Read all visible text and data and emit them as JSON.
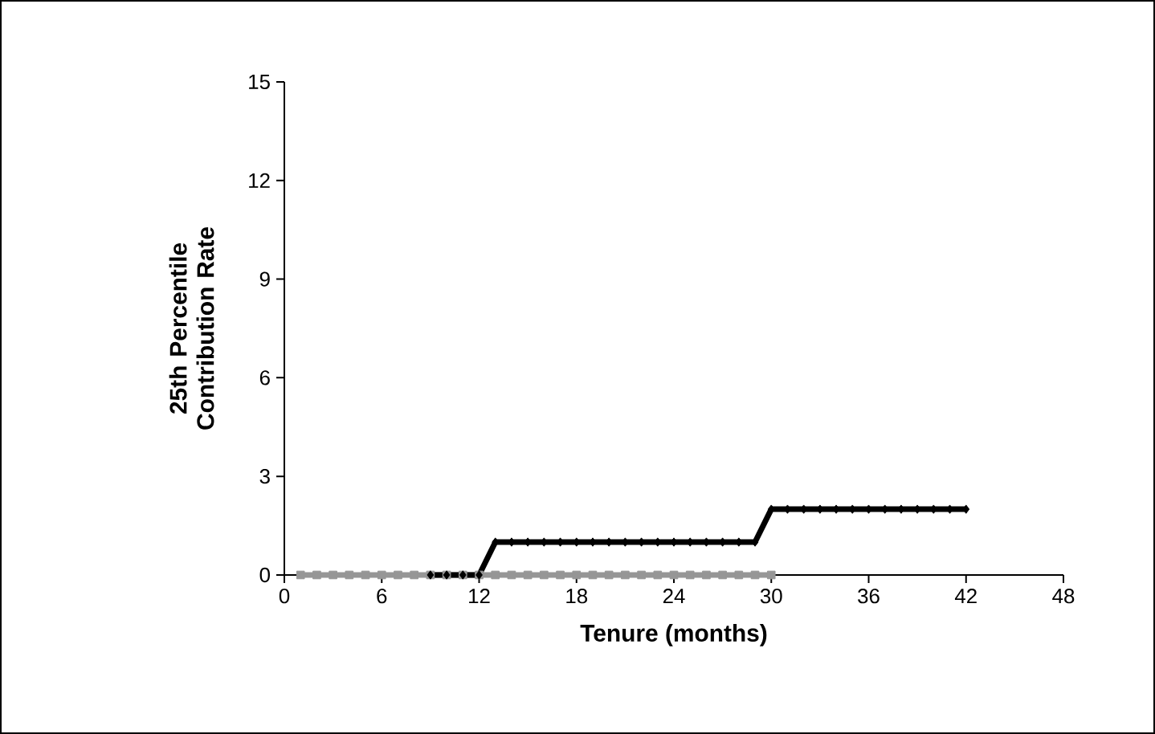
{
  "chart_data": {
    "type": "line",
    "xlabel": "Tenure (months)",
    "ylabel": "25th Percentile Contribution Rate",
    "xlim": [
      0,
      48
    ],
    "xticks": [
      0,
      6,
      12,
      18,
      24,
      30,
      36,
      42,
      48
    ],
    "ylim": [
      0,
      15
    ],
    "yticks": [
      0,
      3,
      6,
      9,
      12,
      15
    ],
    "grid": false,
    "series": [
      {
        "color": "#969696",
        "marker": "square",
        "x": [
          1,
          2,
          3,
          4,
          5,
          6,
          7,
          8,
          9,
          10,
          11,
          12,
          13,
          14,
          15,
          16,
          17,
          18,
          19,
          20,
          21,
          22,
          23,
          24,
          25,
          26,
          27,
          28,
          29,
          30
        ],
        "values": [
          0,
          0,
          0,
          0,
          0,
          0,
          0,
          0,
          0,
          0,
          0,
          0,
          0,
          0,
          0,
          0,
          0,
          0,
          0,
          0,
          0,
          0,
          0,
          0,
          0,
          0,
          0,
          0,
          0,
          0
        ]
      },
      {
        "color": "#000000",
        "marker": "diamond",
        "x": [
          9,
          10,
          11,
          12,
          13,
          14,
          15,
          16,
          17,
          18,
          19,
          20,
          21,
          22,
          23,
          24,
          25,
          26,
          27,
          28,
          29,
          30,
          31,
          32,
          33,
          34,
          35,
          36,
          37,
          38,
          39,
          40,
          41,
          42
        ],
        "values": [
          0,
          0,
          0,
          0,
          1,
          1,
          1,
          1,
          1,
          1,
          1,
          1,
          1,
          1,
          1,
          1,
          1,
          1,
          1,
          1,
          1,
          2,
          2,
          2,
          2,
          2,
          2,
          2,
          2,
          2,
          2,
          2,
          2,
          2
        ]
      }
    ]
  }
}
